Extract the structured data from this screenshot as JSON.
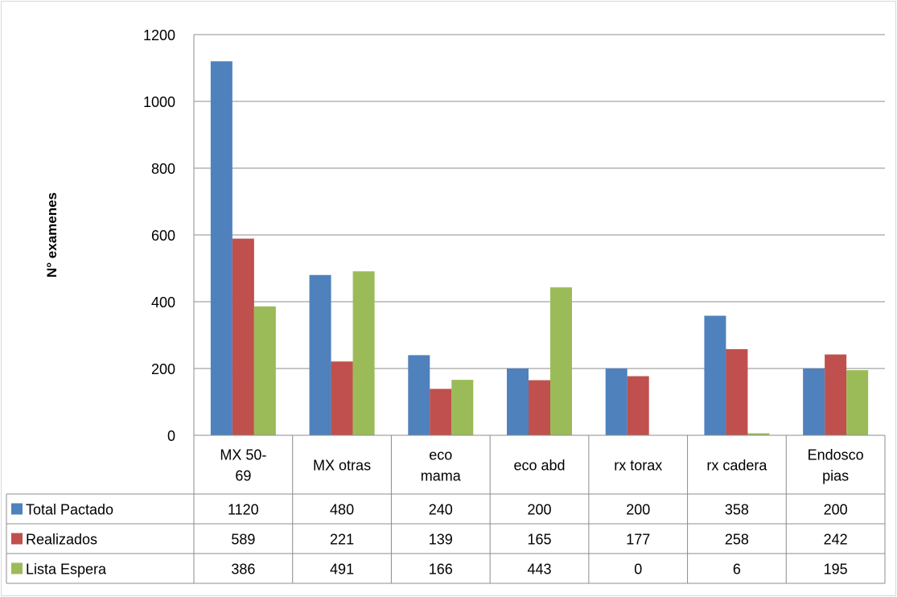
{
  "chart_data": {
    "type": "bar",
    "ylabel": "N° examenes",
    "ylim": [
      0,
      1200
    ],
    "yticks": [
      0,
      200,
      400,
      600,
      800,
      1000,
      1200
    ],
    "grid": true,
    "categories": [
      [
        "MX 50-",
        "69"
      ],
      [
        "MX otras"
      ],
      [
        "eco",
        "mama"
      ],
      [
        "eco abd"
      ],
      [
        "rx torax"
      ],
      [
        "rx cadera"
      ],
      [
        "Endosco",
        "pias"
      ]
    ],
    "series": [
      {
        "name": "Total Pactado",
        "color": "#4f81bd",
        "values": [
          1120,
          480,
          240,
          200,
          200,
          358,
          200
        ]
      },
      {
        "name": "Realizados",
        "color": "#c0504d",
        "values": [
          589,
          221,
          139,
          165,
          177,
          258,
          242
        ]
      },
      {
        "name": "Lista Espera",
        "color": "#9bbb59",
        "values": [
          386,
          491,
          166,
          443,
          0,
          6,
          195
        ]
      }
    ],
    "legend": "data-table"
  }
}
